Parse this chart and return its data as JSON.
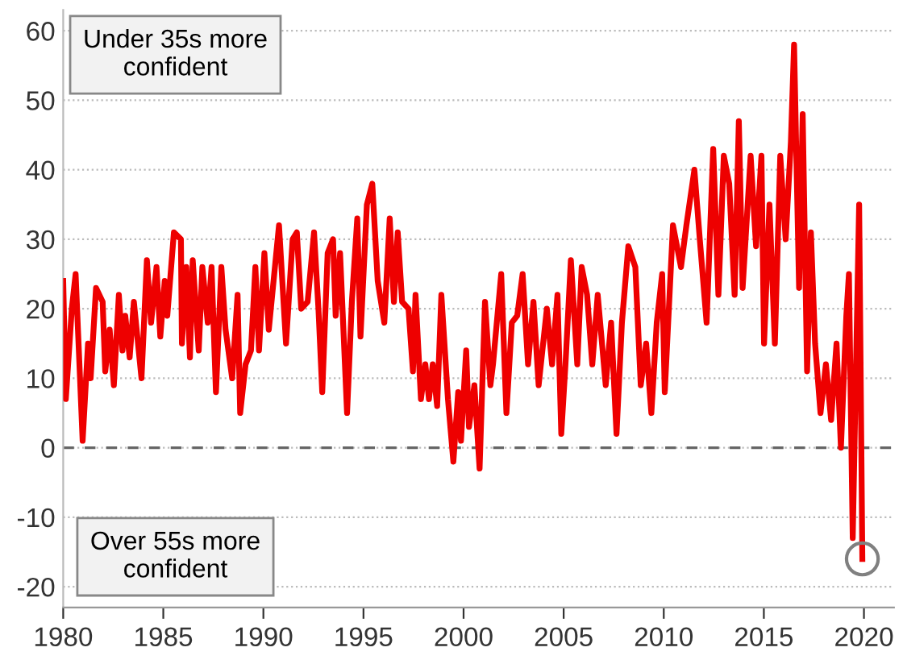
{
  "chart_data": {
    "type": "line",
    "series": [
      {
        "color": "#ee0000",
        "x": [
          1980.0,
          1980.13,
          1980.43,
          1980.62,
          1980.84,
          1980.97,
          1981.24,
          1981.37,
          1981.64,
          1981.97,
          1982.1,
          1982.32,
          1982.53,
          1982.78,
          1982.96,
          1983.1,
          1983.32,
          1983.53,
          1983.91,
          1984.18,
          1984.39,
          1984.66,
          1984.85,
          1985.07,
          1985.2,
          1985.53,
          1985.88,
          1985.93,
          1986.15,
          1986.33,
          1986.47,
          1986.77,
          1986.95,
          1987.22,
          1987.41,
          1987.63,
          1987.9,
          1988.11,
          1988.44,
          1988.71,
          1988.84,
          1989.11,
          1989.38,
          1989.6,
          1989.78,
          1990.05,
          1990.27,
          1990.78,
          1991.13,
          1991.46,
          1991.67,
          1991.89,
          1992.21,
          1992.53,
          1992.75,
          1992.94,
          1993.21,
          1993.48,
          1993.61,
          1993.83,
          1994.18,
          1994.42,
          1994.69,
          1994.85,
          1995.17,
          1995.44,
          1995.71,
          1996.04,
          1996.31,
          1996.52,
          1996.71,
          1996.93,
          1997.25,
          1997.47,
          1997.6,
          1997.87,
          1998.09,
          1998.27,
          1998.46,
          1998.68,
          1998.89,
          1999.22,
          1999.49,
          1999.73,
          1999.87,
          2000.13,
          2000.27,
          2000.54,
          2000.8,
          2001.07,
          2001.34,
          2001.47,
          2001.88,
          2002.14,
          2002.41,
          2002.68,
          2002.95,
          2003.22,
          2003.49,
          2003.75,
          2004.16,
          2004.42,
          2004.69,
          2004.88,
          2005.09,
          2005.36,
          2005.68,
          2005.9,
          2006.17,
          2006.43,
          2006.7,
          2007.1,
          2007.37,
          2007.64,
          2007.91,
          2008.23,
          2008.58,
          2008.85,
          2009.12,
          2009.38,
          2009.65,
          2009.92,
          2010.05,
          2010.46,
          2010.86,
          2011.13,
          2011.53,
          2011.8,
          2012.14,
          2012.47,
          2012.73,
          2013.0,
          2013.27,
          2013.54,
          2013.75,
          2013.94,
          2014.34,
          2014.61,
          2014.88,
          2015.01,
          2015.28,
          2015.55,
          2015.82,
          2016.09,
          2016.35,
          2016.51,
          2016.76,
          2016.94,
          2017.16,
          2017.35,
          2017.56,
          2017.83,
          2018.1,
          2018.36,
          2018.63,
          2018.85,
          2019.12,
          2019.25,
          2019.44,
          2019.76,
          2019.92
        ],
        "values": [
          24,
          7,
          20,
          25,
          10,
          1,
          15,
          10,
          23,
          21,
          11,
          17,
          9,
          22,
          14,
          19,
          13,
          21,
          10,
          27,
          18,
          26,
          16,
          24,
          19,
          31,
          30,
          15,
          26,
          13,
          27,
          14,
          26,
          18,
          26,
          8,
          26,
          17,
          10,
          22,
          5,
          12,
          14,
          26,
          14,
          28,
          17,
          32,
          15,
          30,
          31,
          20,
          21,
          31,
          20,
          8,
          28,
          30,
          19,
          28,
          5,
          21,
          33,
          16,
          35,
          38,
          24,
          18,
          33,
          21,
          31,
          21,
          20,
          11,
          22,
          7,
          12,
          7,
          12,
          6,
          22,
          7,
          -2,
          8,
          1,
          14,
          3,
          9,
          -3,
          21,
          9,
          12,
          25,
          5,
          18,
          19,
          25,
          12,
          21,
          9,
          20,
          12,
          22,
          2,
          12,
          27,
          12,
          26,
          22,
          12,
          22,
          9,
          18,
          2,
          18,
          29,
          26,
          9,
          15,
          5,
          18,
          25,
          8,
          32,
          26,
          32,
          40,
          30,
          18,
          43,
          22,
          42,
          38,
          22,
          47,
          23,
          42,
          29,
          42,
          15,
          35,
          15,
          42,
          30,
          44,
          58,
          23,
          48,
          11,
          31,
          15,
          5,
          12,
          4,
          15,
          0,
          19,
          25,
          -13,
          35,
          -16
        ]
      },
      {
        "type": "scatter",
        "color": "#808080",
        "marker": "circle",
        "x": [
          2019.92
        ],
        "values": [
          -16
        ]
      }
    ],
    "xlim": [
      1980,
      2021.5
    ],
    "xticks": [
      1980,
      1985,
      1990,
      1995,
      2000,
      2005,
      2010,
      2015,
      2020
    ],
    "ylim": [
      -23,
      63
    ],
    "yticks": [
      -20,
      -10,
      0,
      10,
      20,
      30,
      40,
      50,
      60
    ],
    "grid": "y",
    "ref_lines": [
      {
        "axis": "y",
        "value": 0,
        "color": "#666666",
        "line_style": "dashed"
      }
    ],
    "annotations": [
      "Under 35s more confident",
      "Over 55s more confident"
    ]
  }
}
